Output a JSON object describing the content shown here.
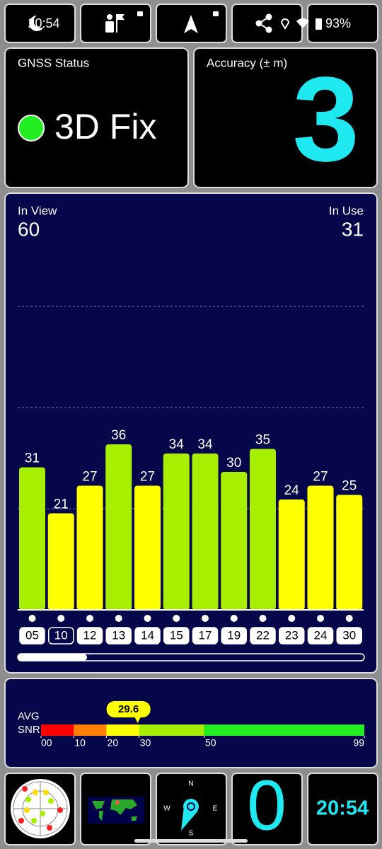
{
  "status_bar": {
    "time": "20:54",
    "battery": "93%"
  },
  "gnss_status": {
    "label": "GNSS Status",
    "value": "3D Fix",
    "color": "#22ee22"
  },
  "accuracy": {
    "label": "Accuracy (± m)",
    "value": 3,
    "color": "#1ee8f0"
  },
  "satellites": {
    "in_view_label": "In View",
    "in_view": 60,
    "in_use_label": "In Use",
    "in_use": 31,
    "prns": [
      "05",
      "10",
      "12",
      "13",
      "14",
      "15",
      "17",
      "19",
      "22",
      "23",
      "24",
      "30"
    ],
    "snr": [
      31,
      21,
      27,
      36,
      27,
      34,
      34,
      30,
      35,
      24,
      27,
      25
    ],
    "colors": [
      "#a8ee00",
      "#ffff00",
      "#ffff00",
      "#a8ee00",
      "#ffff00",
      "#a8ee00",
      "#a8ee00",
      "#a8ee00",
      "#a8ee00",
      "#ffff00",
      "#ffff00",
      "#ffff00"
    ],
    "selected_index": 1,
    "ylim": [
      0,
      66
    ],
    "gridlines": [
      22,
      44,
      66
    ]
  },
  "snr_scale": {
    "label_top": "AVG",
    "label_bottom": "SNR",
    "avg": 29.6,
    "xlim": [
      0,
      99
    ],
    "ticks": [
      {
        "value": 0,
        "label": "00"
      },
      10,
      20,
      30,
      50,
      99
    ],
    "colors": [
      "#ff0000",
      "#ff8000",
      "#ffff00",
      "#a8ee00",
      "#22ee22"
    ]
  },
  "bottom_bar": {
    "compass": {
      "n": "N",
      "e": "E",
      "s": "S",
      "w": "W"
    },
    "speed": 0,
    "clock": "20:54"
  }
}
